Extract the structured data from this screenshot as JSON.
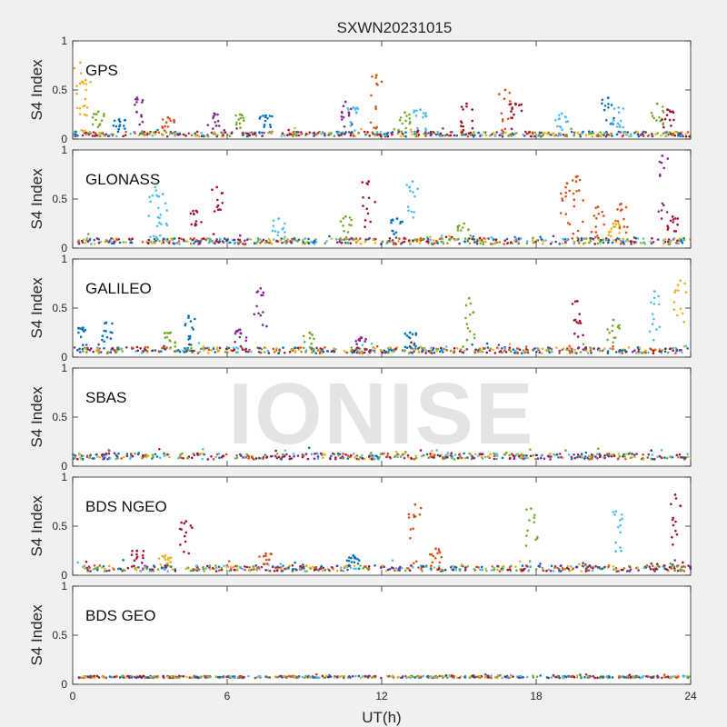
{
  "chart_data": {
    "type": "scatter",
    "title": "SXWN20231015",
    "xlabel": "UT(h)",
    "ylabel": "S4 Index",
    "xlim": [
      0,
      24
    ],
    "ylim": [
      0,
      1
    ],
    "xticks": [
      0,
      6,
      12,
      18,
      24
    ],
    "yticks": [
      0,
      0.5,
      1
    ],
    "watermark": "IONISE",
    "grid": false,
    "colors": [
      "#0072BD",
      "#D95319",
      "#EDB120",
      "#7E2F8E",
      "#77AC30",
      "#4DBEEE",
      "#A2142F"
    ],
    "panels": [
      {
        "label": "GPS",
        "baseline": 0.05,
        "noise": 0.025,
        "spikes": [
          {
            "x": 0.3,
            "peak": 0.78,
            "color": 2
          },
          {
            "x": 0.5,
            "peak": 0.6,
            "color": 2
          },
          {
            "x": 1.0,
            "peak": 0.28,
            "color": 4
          },
          {
            "x": 1.8,
            "peak": 0.2,
            "color": 0
          },
          {
            "x": 2.5,
            "peak": 0.42,
            "color": 3
          },
          {
            "x": 3.7,
            "peak": 0.22,
            "color": 1
          },
          {
            "x": 5.5,
            "peak": 0.26,
            "color": 3
          },
          {
            "x": 6.5,
            "peak": 0.25,
            "color": 4
          },
          {
            "x": 7.5,
            "peak": 0.24,
            "color": 0
          },
          {
            "x": 10.6,
            "peak": 0.38,
            "color": 3
          },
          {
            "x": 10.9,
            "peak": 0.32,
            "color": 5
          },
          {
            "x": 11.8,
            "peak": 0.65,
            "color": 1
          },
          {
            "x": 12.9,
            "peak": 0.27,
            "color": 4
          },
          {
            "x": 13.5,
            "peak": 0.3,
            "color": 5
          },
          {
            "x": 15.3,
            "peak": 0.36,
            "color": 6
          },
          {
            "x": 16.8,
            "peak": 0.5,
            "color": 1
          },
          {
            "x": 17.2,
            "peak": 0.36,
            "color": 6
          },
          {
            "x": 19.0,
            "peak": 0.26,
            "color": 5
          },
          {
            "x": 20.8,
            "peak": 0.42,
            "color": 0
          },
          {
            "x": 21.2,
            "peak": 0.32,
            "color": 5
          },
          {
            "x": 22.7,
            "peak": 0.36,
            "color": 4
          },
          {
            "x": 23.1,
            "peak": 0.3,
            "color": 6
          }
        ]
      },
      {
        "label": "GLONASS",
        "baseline": 0.07,
        "noise": 0.03,
        "spikes": [
          {
            "x": 3.2,
            "peak": 0.62,
            "color": 5
          },
          {
            "x": 3.5,
            "peak": 0.55,
            "color": 5
          },
          {
            "x": 4.8,
            "peak": 0.38,
            "color": 6
          },
          {
            "x": 5.6,
            "peak": 0.62,
            "color": 6
          },
          {
            "x": 8.0,
            "peak": 0.3,
            "color": 5
          },
          {
            "x": 10.6,
            "peak": 0.32,
            "color": 4
          },
          {
            "x": 11.5,
            "peak": 0.68,
            "color": 6
          },
          {
            "x": 12.6,
            "peak": 0.3,
            "color": 0
          },
          {
            "x": 13.2,
            "peak": 0.68,
            "color": 5
          },
          {
            "x": 15.2,
            "peak": 0.25,
            "color": 4
          },
          {
            "x": 19.2,
            "peak": 0.66,
            "color": 1
          },
          {
            "x": 19.6,
            "peak": 0.73,
            "color": 1
          },
          {
            "x": 20.4,
            "peak": 0.42,
            "color": 1
          },
          {
            "x": 21.0,
            "peak": 0.25,
            "color": 2
          },
          {
            "x": 21.3,
            "peak": 0.45,
            "color": 1
          },
          {
            "x": 22.9,
            "peak": 0.94,
            "color": 3
          },
          {
            "x": 23.3,
            "peak": 0.32,
            "color": 6
          }
        ]
      },
      {
        "label": "GALILEO",
        "baseline": 0.07,
        "noise": 0.03,
        "spikes": [
          {
            "x": 0.4,
            "peak": 0.3,
            "color": 0
          },
          {
            "x": 1.3,
            "peak": 0.35,
            "color": 0
          },
          {
            "x": 3.8,
            "peak": 0.25,
            "color": 4
          },
          {
            "x": 4.5,
            "peak": 0.42,
            "color": 0
          },
          {
            "x": 6.5,
            "peak": 0.28,
            "color": 3
          },
          {
            "x": 7.3,
            "peak": 0.7,
            "color": 3
          },
          {
            "x": 9.2,
            "peak": 0.25,
            "color": 4
          },
          {
            "x": 11.2,
            "peak": 0.2,
            "color": 3
          },
          {
            "x": 13.1,
            "peak": 0.25,
            "color": 0
          },
          {
            "x": 15.4,
            "peak": 0.6,
            "color": 4
          },
          {
            "x": 19.6,
            "peak": 0.57,
            "color": 6
          },
          {
            "x": 21.0,
            "peak": 0.38,
            "color": 4
          },
          {
            "x": 22.6,
            "peak": 0.67,
            "color": 5
          },
          {
            "x": 23.6,
            "peak": 0.78,
            "color": 2
          }
        ]
      },
      {
        "label": "SBAS",
        "baseline": 0.1,
        "noise": 0.03,
        "spikes": []
      },
      {
        "label": "BDS NGEO",
        "baseline": 0.07,
        "noise": 0.03,
        "spikes": [
          {
            "x": 2.5,
            "peak": 0.25,
            "color": 6
          },
          {
            "x": 3.6,
            "peak": 0.2,
            "color": 2
          },
          {
            "x": 4.4,
            "peak": 0.55,
            "color": 6
          },
          {
            "x": 7.5,
            "peak": 0.22,
            "color": 1
          },
          {
            "x": 10.9,
            "peak": 0.2,
            "color": 0
          },
          {
            "x": 13.3,
            "peak": 0.72,
            "color": 1
          },
          {
            "x": 14.1,
            "peak": 0.27,
            "color": 1
          },
          {
            "x": 17.8,
            "peak": 0.68,
            "color": 4
          },
          {
            "x": 21.1,
            "peak": 0.65,
            "color": 5
          },
          {
            "x": 23.4,
            "peak": 0.82,
            "color": 6
          }
        ]
      },
      {
        "label": "BDS GEO",
        "baseline": 0.075,
        "noise": 0.01,
        "spikes": []
      }
    ]
  }
}
